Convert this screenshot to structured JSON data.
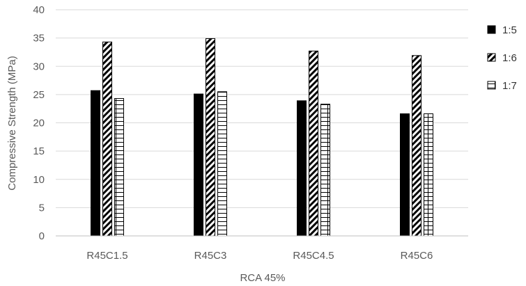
{
  "chart_data": {
    "type": "bar",
    "title": "",
    "xlabel": "RCA 45%",
    "ylabel": "Compressive Strength  (MPa)",
    "ylim": [
      0,
      40
    ],
    "yticks": [
      0,
      5,
      10,
      15,
      20,
      25,
      30,
      35,
      40
    ],
    "grid": "horizontal",
    "legend_position": "right",
    "categories": [
      "R45C1.5",
      "R45C3",
      "R45C4.5",
      "R45C6"
    ],
    "series": [
      {
        "name": "1:5",
        "pattern": "solid-black",
        "values": [
          25.7,
          25.1,
          23.9,
          21.6
        ]
      },
      {
        "name": "1:6",
        "pattern": "diagonal-hatch",
        "values": [
          34.3,
          34.9,
          32.7,
          31.9
        ]
      },
      {
        "name": "1:7",
        "pattern": "grid",
        "values": [
          24.3,
          25.5,
          23.3,
          21.6
        ]
      }
    ]
  }
}
